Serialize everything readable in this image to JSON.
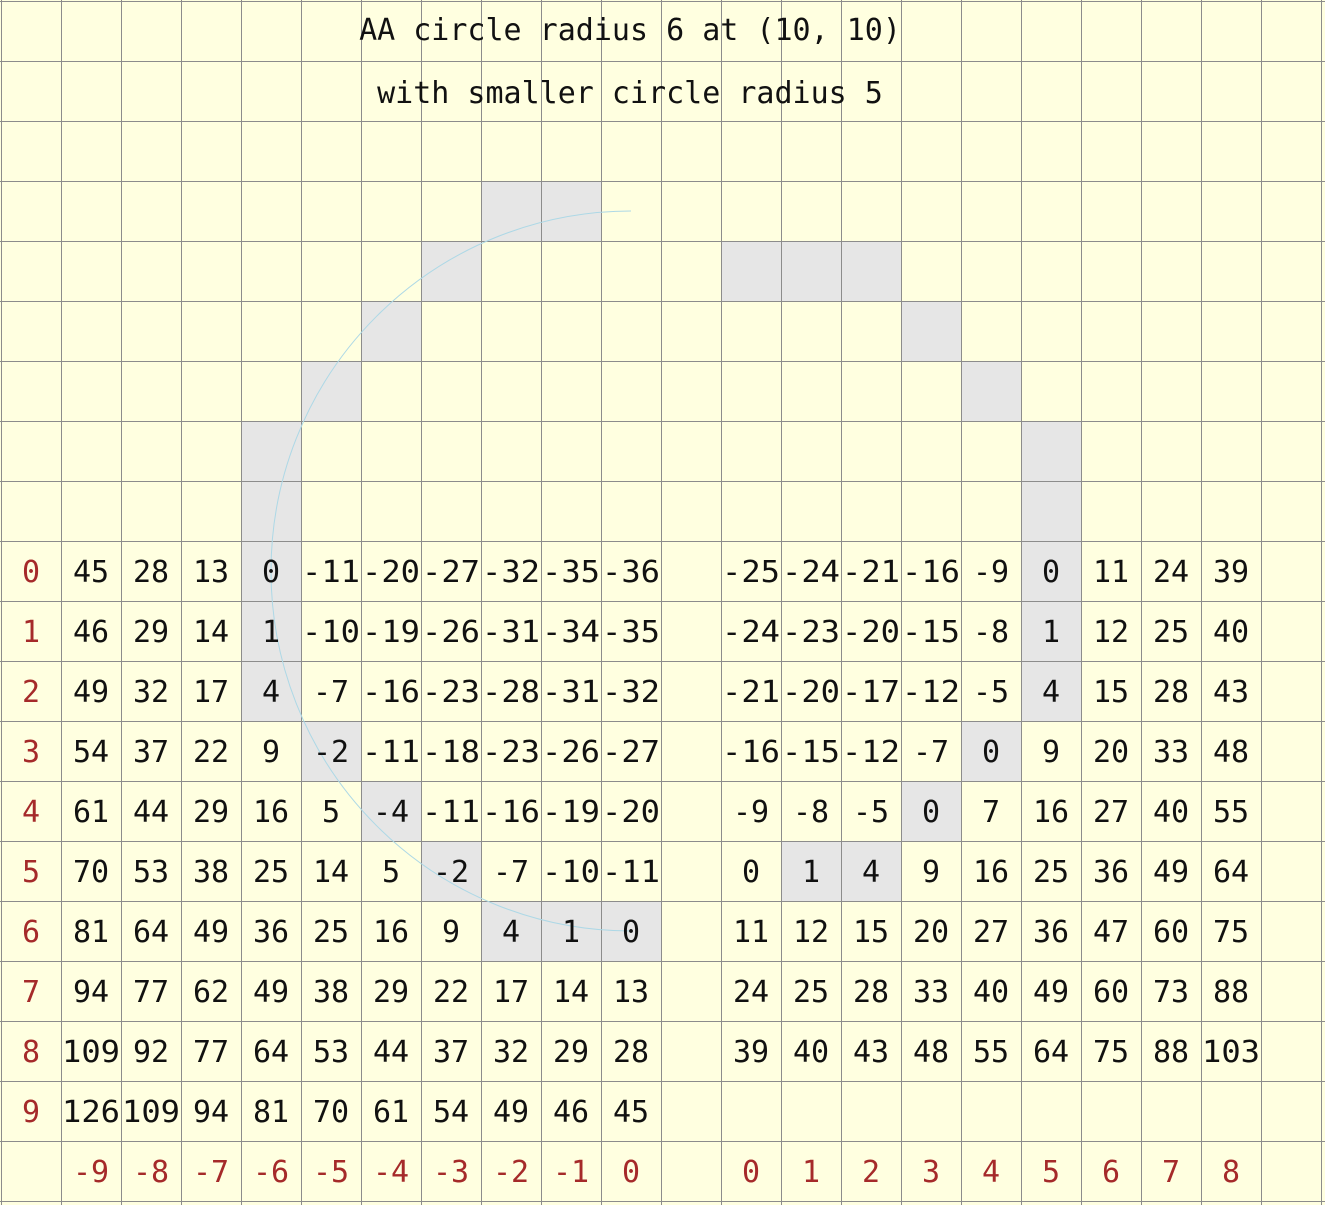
{
  "title": "AA circle radius 6 at (10, 10)",
  "subtitle": "with smaller circle radius 5",
  "colors": {
    "background": "#ffffe0",
    "grid_line": "#8c8c8c",
    "highlight_cell": "#e6e6e6",
    "arc": "#add8e6",
    "axis_label": "#a52a2a",
    "value_text": "#111111"
  },
  "grid": {
    "columns": 22,
    "rows": 20
  },
  "row_labels": [
    "0",
    "1",
    "2",
    "3",
    "4",
    "5",
    "6",
    "7",
    "8",
    "9"
  ],
  "left_panel": {
    "column_labels": [
      "-9",
      "-8",
      "-7",
      "-6",
      "-5",
      "-4",
      "-3",
      "-2",
      "-1",
      "0"
    ],
    "values": [
      [
        "45",
        "28",
        "13",
        "0",
        "-11",
        "-20",
        "-27",
        "-32",
        "-35",
        "-36"
      ],
      [
        "46",
        "29",
        "14",
        "1",
        "-10",
        "-19",
        "-26",
        "-31",
        "-34",
        "-35"
      ],
      [
        "49",
        "32",
        "17",
        "4",
        "-7",
        "-16",
        "-23",
        "-28",
        "-31",
        "-32"
      ],
      [
        "54",
        "37",
        "22",
        "9",
        "-2",
        "-11",
        "-18",
        "-23",
        "-26",
        "-27"
      ],
      [
        "61",
        "44",
        "29",
        "16",
        "5",
        "-4",
        "-11",
        "-16",
        "-19",
        "-20"
      ],
      [
        "70",
        "53",
        "38",
        "25",
        "14",
        "5",
        "-2",
        "-7",
        "-10",
        "-11"
      ],
      [
        "81",
        "64",
        "49",
        "36",
        "25",
        "16",
        "9",
        "4",
        "1",
        "0"
      ],
      [
        "94",
        "77",
        "62",
        "49",
        "38",
        "29",
        "22",
        "17",
        "14",
        "13"
      ],
      [
        "109",
        "92",
        "77",
        "64",
        "53",
        "44",
        "37",
        "32",
        "29",
        "28"
      ],
      [
        "126",
        "109",
        "94",
        "81",
        "70",
        "61",
        "54",
        "49",
        "46",
        "45"
      ]
    ]
  },
  "right_panel": {
    "column_labels": [
      "0",
      "1",
      "2",
      "3",
      "4",
      "5",
      "6",
      "7",
      "8"
    ],
    "values": [
      [
        "-25",
        "-24",
        "-21",
        "-16",
        "-9",
        "0",
        "11",
        "24",
        "39"
      ],
      [
        "-24",
        "-23",
        "-20",
        "-15",
        "-8",
        "1",
        "12",
        "25",
        "40"
      ],
      [
        "-21",
        "-20",
        "-17",
        "-12",
        "-5",
        "4",
        "15",
        "28",
        "43"
      ],
      [
        "-16",
        "-15",
        "-12",
        "-7",
        "0",
        "9",
        "20",
        "33",
        "48"
      ],
      [
        "-9",
        "-8",
        "-5",
        "0",
        "7",
        "16",
        "27",
        "40",
        "55"
      ],
      [
        "0",
        "1",
        "4",
        "9",
        "16",
        "25",
        "36",
        "49",
        "64"
      ],
      [
        "11",
        "12",
        "15",
        "20",
        "27",
        "36",
        "47",
        "60",
        "75"
      ],
      [
        "24",
        "25",
        "28",
        "33",
        "40",
        "49",
        "60",
        "73",
        "88"
      ],
      [
        "39",
        "40",
        "43",
        "48",
        "55",
        "64",
        "75",
        "88",
        "103"
      ]
    ]
  },
  "highlighted_cells": [
    [
      8,
      3
    ],
    [
      9,
      3
    ],
    [
      7,
      4
    ],
    [
      12,
      4
    ],
    [
      13,
      4
    ],
    [
      14,
      4
    ],
    [
      6,
      5
    ],
    [
      15,
      5
    ],
    [
      5,
      6
    ],
    [
      16,
      6
    ],
    [
      4,
      7
    ],
    [
      17,
      7
    ],
    [
      4,
      8
    ],
    [
      17,
      8
    ],
    [
      4,
      9
    ],
    [
      17,
      9
    ],
    [
      4,
      10
    ],
    [
      17,
      10
    ],
    [
      4,
      11
    ],
    [
      17,
      11
    ],
    [
      5,
      12
    ],
    [
      16,
      12
    ],
    [
      6,
      13
    ],
    [
      15,
      13
    ],
    [
      7,
      14
    ],
    [
      13,
      14
    ],
    [
      14,
      14
    ],
    [
      8,
      15
    ],
    [
      9,
      15
    ],
    [
      10,
      15
    ]
  ],
  "arc": {
    "center_col": 10.5,
    "center_row": 9.5,
    "radius_cells": 6,
    "start_deg": 90,
    "end_deg": 270,
    "direction": "clockwise"
  }
}
